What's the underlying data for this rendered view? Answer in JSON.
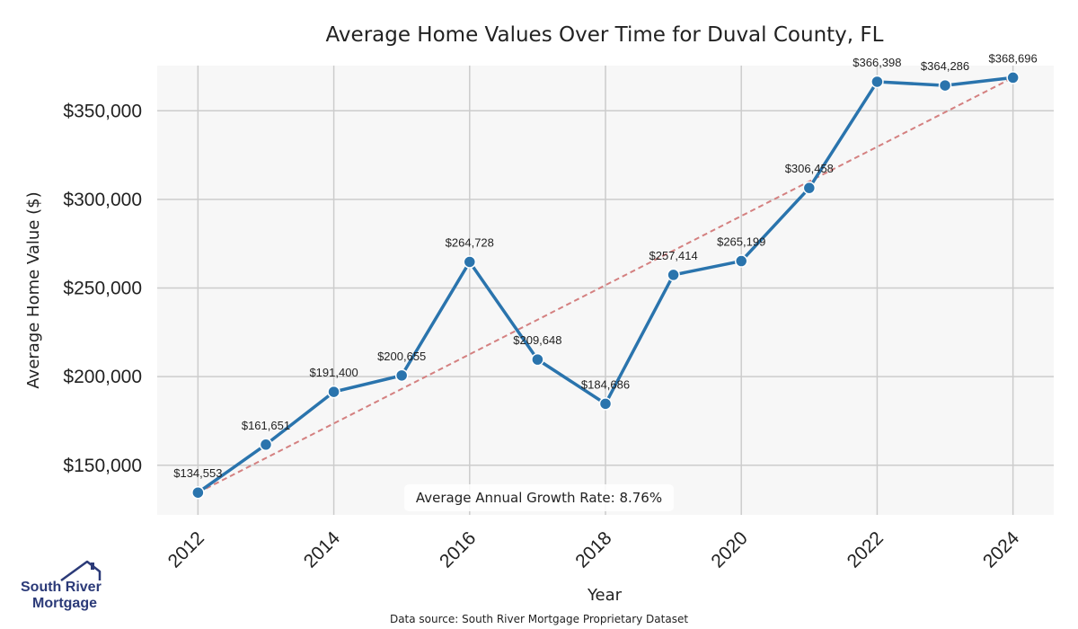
{
  "chart_data": {
    "type": "line",
    "title": "Average Home Values Over Time for Duval County, FL",
    "xlabel": "Year",
    "ylabel": "Average Home Value ($)",
    "x": [
      2012,
      2013,
      2014,
      2015,
      2016,
      2017,
      2018,
      2019,
      2020,
      2021,
      2022,
      2023,
      2024
    ],
    "values": [
      134553,
      161651,
      191400,
      200655,
      264728,
      209648,
      184686,
      257414,
      265199,
      306458,
      366398,
      364286,
      368696
    ],
    "data_labels": [
      "$134,553",
      "$161,651",
      "$191,400",
      "$200,655",
      "$264,728",
      "$209,648",
      "$184,686",
      "$257,414",
      "$265,199",
      "$306,458",
      "$366,398",
      "$364,286",
      "$368,696"
    ],
    "xticks": [
      "2012",
      "2014",
      "2016",
      "2018",
      "2020",
      "2022",
      "2024"
    ],
    "xtick_values": [
      2012,
      2014,
      2016,
      2018,
      2020,
      2022,
      2024
    ],
    "yticks": [
      "$150,000",
      "$200,000",
      "$250,000",
      "$300,000",
      "$350,000"
    ],
    "ytick_values": [
      150000,
      200000,
      250000,
      300000,
      350000
    ],
    "xlim": [
      2011.4,
      2024.6
    ],
    "ylim": [
      122000,
      375500
    ],
    "trend_line": {
      "start": 134553,
      "end": 368696,
      "style": "dashed"
    },
    "annotation": "Average Annual Growth Rate: 8.76%",
    "colors": {
      "line": "#2a74ad",
      "marker": "#2a74ad",
      "trend": "#d48080",
      "plot_bg": "#f7f7f7",
      "grid": "#cccccc"
    },
    "grid": true
  },
  "source": "Data source: South River Mortgage Proprietary Dataset",
  "logo": {
    "line1": "South River",
    "line2": "Mortgage"
  }
}
